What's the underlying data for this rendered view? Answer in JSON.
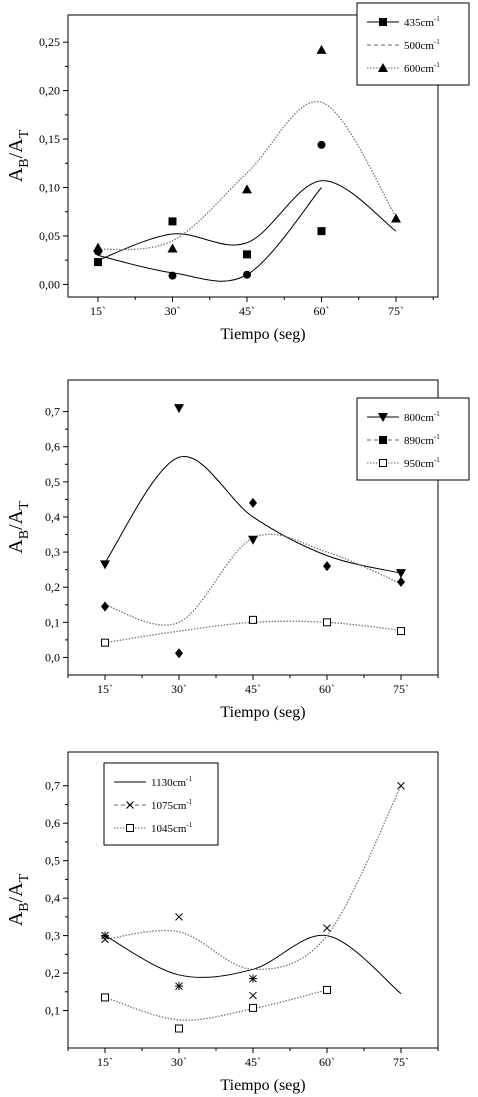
{
  "charts": [
    {
      "type": "scatter",
      "xlabel": "Tiempo (seg)",
      "ylabel": {
        "a": "A",
        "b": "B",
        "slash": "/A",
        "t": "T"
      },
      "categories": [
        "15`",
        "30`",
        "45`",
        "60`",
        "75`"
      ],
      "yticks": [
        "0,00",
        "0,05",
        "0,10",
        "0,15",
        "0,20",
        "0,25"
      ],
      "ylim": [
        -0.013,
        0.278
      ],
      "legend": {
        "position": "top-right"
      },
      "series": [
        {
          "name": "435cm",
          "sup": "-1",
          "marker": "square",
          "points": [
            [
              1,
              0.023
            ],
            [
              2,
              0.065
            ],
            [
              3,
              0.031
            ],
            [
              4,
              0.055
            ]
          ]
        },
        {
          "name": "500cm",
          "sup": "-1",
          "marker": "circle",
          "legend_marker": "none",
          "points": [
            [
              1,
              0.034
            ],
            [
              2,
              0.009
            ],
            [
              3,
              0.01
            ],
            [
              4,
              0.144
            ]
          ]
        },
        {
          "name": "600cm",
          "sup": "-1",
          "marker": "triangle-up",
          "points": [
            [
              1,
              0.038
            ],
            [
              2,
              0.037
            ],
            [
              3,
              0.098
            ],
            [
              4,
              0.242
            ],
            [
              5,
              0.068
            ]
          ]
        }
      ],
      "curves": [
        {
          "style": "solid",
          "points": [
            [
              1,
              0.025
            ],
            [
              2,
              0.052
            ],
            [
              3,
              0.043
            ],
            [
              4,
              0.107
            ],
            [
              5,
              0.055
            ]
          ]
        },
        {
          "style": "solid",
          "points": [
            [
              1,
              0.03
            ],
            [
              2,
              0.012
            ],
            [
              3,
              0.01
            ],
            [
              4,
              0.1
            ]
          ]
        },
        {
          "style": "dotted",
          "points": [
            [
              1,
              0.036
            ],
            [
              2,
              0.045
            ],
            [
              3,
              0.115
            ],
            [
              4,
              0.188
            ],
            [
              5,
              0.07
            ]
          ]
        }
      ]
    },
    {
      "type": "scatter",
      "xlabel": "Tiempo (seg)",
      "ylabel": {
        "a": "A",
        "b": "B",
        "slash": "/A",
        "t": "T"
      },
      "categories": [
        "15`",
        "30`",
        "45`",
        "60`",
        "75`"
      ],
      "yticks": [
        "0,0",
        "0,1",
        "0,2",
        "0,3",
        "0,4",
        "0,5",
        "0,6",
        "0,7"
      ],
      "ylim": [
        -0.05,
        0.79
      ],
      "legend": {
        "position": "top-right"
      },
      "series": [
        {
          "name": "800cm",
          "sup": "-1",
          "marker": "triangle-down",
          "points": [
            [
              1,
              0.265
            ],
            [
              2,
              0.71
            ],
            [
              3,
              0.335
            ],
            [
              5,
              0.24
            ]
          ]
        },
        {
          "name": "890cm",
          "sup": "-1",
          "marker": "diamond",
          "legend_marker": "square",
          "points": [
            [
              1,
              0.145
            ],
            [
              2,
              0.012
            ],
            [
              3,
              0.44
            ],
            [
              4,
              0.26
            ],
            [
              5,
              0.215
            ]
          ]
        },
        {
          "name": "950cm",
          "sup": "-1",
          "marker": "square-open",
          "points": [
            [
              1,
              0.042
            ],
            [
              3,
              0.107
            ],
            [
              4,
              0.1
            ],
            [
              5,
              0.075
            ]
          ]
        }
      ],
      "curves": [
        {
          "style": "solid",
          "points": [
            [
              1,
              0.27
            ],
            [
              2,
              0.57
            ],
            [
              3,
              0.4
            ],
            [
              4,
              0.29
            ],
            [
              5,
              0.24
            ]
          ]
        },
        {
          "style": "dotted",
          "points": [
            [
              1,
              0.15
            ],
            [
              2,
              0.1
            ],
            [
              3,
              0.34
            ],
            [
              4,
              0.3
            ],
            [
              5,
              0.21
            ]
          ]
        },
        {
          "style": "dotted",
          "points": [
            [
              1,
              0.042
            ],
            [
              2,
              0.075
            ],
            [
              3,
              0.1
            ],
            [
              4,
              0.1
            ],
            [
              5,
              0.077
            ]
          ]
        }
      ]
    },
    {
      "type": "scatter",
      "xlabel": "Tiempo (seg)",
      "ylabel": {
        "a": "A",
        "b": "B",
        "slash": "/A",
        "t": "T"
      },
      "categories": [
        "15`",
        "30`",
        "45`",
        "60`",
        "75`"
      ],
      "yticks": [
        "0,1",
        "0,2",
        "0,3",
        "0,4",
        "0,5",
        "0,6",
        "0,7"
      ],
      "ylim": [
        0.0,
        0.79
      ],
      "legend": {
        "position": "top-left"
      },
      "series": [
        {
          "name": "1130cm",
          "sup": "-1",
          "marker": "asterisk",
          "legend_marker": "dash",
          "points": [
            [
              1,
              0.3
            ],
            [
              2,
              0.165
            ],
            [
              3,
              0.185
            ]
          ]
        },
        {
          "name": "1075cm",
          "sup": "-1",
          "marker": "x",
          "points": [
            [
              1,
              0.29
            ],
            [
              2,
              0.35
            ],
            [
              3,
              0.14
            ],
            [
              4,
              0.32
            ],
            [
              5,
              0.7
            ]
          ]
        },
        {
          "name": "1045cm",
          "sup": "-1",
          "marker": "square-open",
          "points": [
            [
              1,
              0.135
            ],
            [
              2,
              0.052
            ],
            [
              3,
              0.107
            ],
            [
              4,
              0.155
            ]
          ]
        }
      ],
      "curves": [
        {
          "style": "solid",
          "points": [
            [
              1,
              0.3
            ],
            [
              2,
              0.195
            ],
            [
              3,
              0.21
            ],
            [
              4,
              0.3
            ],
            [
              5,
              0.145
            ]
          ]
        },
        {
          "style": "dotted",
          "points": [
            [
              1,
              0.29
            ],
            [
              2,
              0.31
            ],
            [
              3,
              0.21
            ],
            [
              4,
              0.3
            ],
            [
              5,
              0.7
            ]
          ]
        },
        {
          "style": "dotted",
          "points": [
            [
              1,
              0.135
            ],
            [
              2,
              0.075
            ],
            [
              3,
              0.105
            ],
            [
              4,
              0.155
            ]
          ]
        }
      ]
    }
  ]
}
